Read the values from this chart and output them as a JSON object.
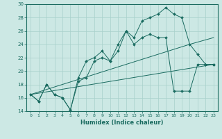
{
  "xlabel": "Humidex (Indice chaleur)",
  "xlim": [
    -0.5,
    23.5
  ],
  "ylim": [
    14,
    30
  ],
  "xticks": [
    0,
    1,
    2,
    3,
    4,
    5,
    6,
    7,
    8,
    9,
    10,
    11,
    12,
    13,
    14,
    15,
    16,
    17,
    18,
    19,
    20,
    21,
    22,
    23
  ],
  "yticks": [
    14,
    16,
    18,
    20,
    22,
    24,
    26,
    28,
    30
  ],
  "bg_color": "#cce8e4",
  "line_color": "#1a6b60",
  "grid_color": "#a8d0cb",
  "line1_x": [
    0,
    1,
    2,
    3,
    4,
    5,
    6,
    7,
    8,
    9,
    10,
    11,
    12,
    13,
    14,
    15,
    16,
    17,
    18,
    19,
    20,
    21,
    22,
    23
  ],
  "line1_y": [
    16.5,
    15.5,
    18,
    16.5,
    16,
    14.2,
    18.5,
    19,
    21.5,
    22,
    21.5,
    24,
    26,
    25,
    27.5,
    28,
    28.5,
    29.5,
    28.5,
    28,
    24,
    22.5,
    21,
    21
  ],
  "line2_x": [
    0,
    1,
    2,
    3,
    4,
    5,
    6,
    7,
    8,
    9,
    10,
    11,
    12,
    13,
    14,
    15,
    16,
    17,
    18,
    19,
    20,
    21,
    22,
    23
  ],
  "line2_y": [
    16.5,
    15.5,
    18,
    16.5,
    16,
    14.2,
    19,
    21.5,
    22,
    23,
    21.5,
    23,
    26,
    24,
    25,
    25.5,
    25,
    25,
    17,
    17,
    17,
    21,
    21,
    21
  ],
  "line3_x": [
    0,
    20,
    23
  ],
  "line3_y": [
    16.5,
    24,
    25
  ],
  "line4_x": [
    0,
    23
  ],
  "line4_y": [
    16.5,
    21
  ]
}
